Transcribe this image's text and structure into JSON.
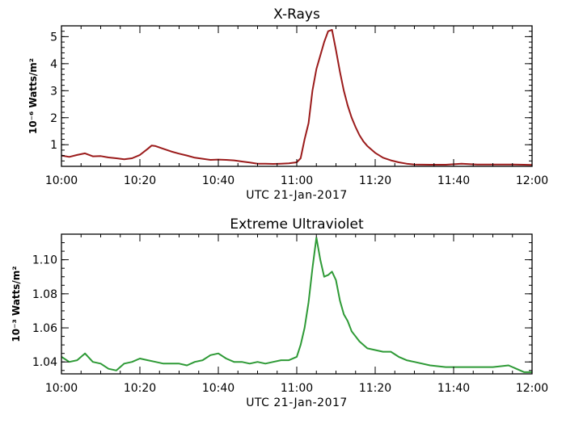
{
  "chart_data": [
    {
      "type": "line",
      "title": "X-Rays",
      "xlabel": "UTC 21-Jan-2017",
      "ylabel": "10⁻⁶ Watts/m²",
      "x_ticks": [
        "10:00",
        "10:20",
        "10:40",
        "11:00",
        "11:20",
        "11:40",
        "12:00"
      ],
      "y_ticks": [
        "1",
        "2",
        "3",
        "4",
        "5"
      ],
      "xlim_minutes": [
        0,
        120
      ],
      "ylim": [
        0.2,
        5.4
      ],
      "series": [
        {
          "color": "#9b1b1b",
          "x": [
            0,
            2,
            4,
            6,
            8,
            10,
            12,
            14,
            16,
            18,
            20,
            22,
            23,
            24,
            26,
            28,
            30,
            32,
            34,
            36,
            38,
            40,
            42,
            44,
            46,
            48,
            50,
            52,
            54,
            56,
            58,
            60,
            61,
            62,
            63,
            64,
            65,
            66,
            67,
            68,
            69,
            70,
            71,
            72,
            73,
            74,
            75,
            76,
            77,
            78,
            80,
            82,
            84,
            86,
            88,
            90,
            94,
            98,
            102,
            106,
            110,
            114,
            118,
            120
          ],
          "y": [
            0.6,
            0.55,
            0.62,
            0.68,
            0.57,
            0.58,
            0.53,
            0.5,
            0.46,
            0.5,
            0.62,
            0.85,
            0.97,
            0.95,
            0.85,
            0.75,
            0.67,
            0.6,
            0.52,
            0.48,
            0.44,
            0.45,
            0.44,
            0.42,
            0.38,
            0.34,
            0.3,
            0.3,
            0.29,
            0.3,
            0.31,
            0.35,
            0.5,
            1.2,
            1.8,
            3.0,
            3.8,
            4.3,
            4.8,
            5.2,
            5.25,
            4.5,
            3.7,
            3.0,
            2.45,
            2.0,
            1.65,
            1.35,
            1.12,
            0.95,
            0.7,
            0.52,
            0.42,
            0.35,
            0.3,
            0.27,
            0.26,
            0.26,
            0.3,
            0.27,
            0.27,
            0.27,
            0.26,
            0.25
          ]
        }
      ]
    },
    {
      "type": "line",
      "title": "Extreme Ultraviolet",
      "xlabel": "UTC 21-Jan-2017",
      "ylabel": "10⁻³ Watts/m²",
      "x_ticks": [
        "10:00",
        "10:20",
        "10:40",
        "11:00",
        "11:20",
        "11:40",
        "12:00"
      ],
      "y_ticks": [
        "1.04",
        "1.06",
        "1.08",
        "1.10"
      ],
      "xlim_minutes": [
        0,
        120
      ],
      "ylim": [
        1.033,
        1.115
      ],
      "series": [
        {
          "color": "#2e9a36",
          "x": [
            0,
            2,
            4,
            6,
            8,
            10,
            12,
            14,
            16,
            18,
            20,
            22,
            24,
            26,
            28,
            30,
            32,
            34,
            36,
            38,
            40,
            42,
            44,
            46,
            48,
            50,
            52,
            54,
            56,
            58,
            60,
            61,
            62,
            63,
            64,
            65,
            66,
            67,
            68,
            69,
            70,
            71,
            72,
            73,
            74,
            76,
            78,
            80,
            82,
            84,
            86,
            88,
            90,
            94,
            98,
            102,
            106,
            110,
            114,
            118,
            120
          ],
          "y": [
            1.043,
            1.04,
            1.041,
            1.045,
            1.04,
            1.039,
            1.036,
            1.035,
            1.039,
            1.04,
            1.042,
            1.041,
            1.04,
            1.039,
            1.039,
            1.039,
            1.038,
            1.04,
            1.041,
            1.044,
            1.045,
            1.042,
            1.04,
            1.04,
            1.039,
            1.04,
            1.039,
            1.04,
            1.041,
            1.041,
            1.043,
            1.05,
            1.06,
            1.075,
            1.095,
            1.113,
            1.1,
            1.09,
            1.091,
            1.093,
            1.088,
            1.076,
            1.068,
            1.064,
            1.058,
            1.052,
            1.048,
            1.047,
            1.046,
            1.046,
            1.043,
            1.041,
            1.04,
            1.038,
            1.037,
            1.037,
            1.037,
            1.037,
            1.038,
            1.034,
            1.034
          ]
        }
      ]
    }
  ]
}
